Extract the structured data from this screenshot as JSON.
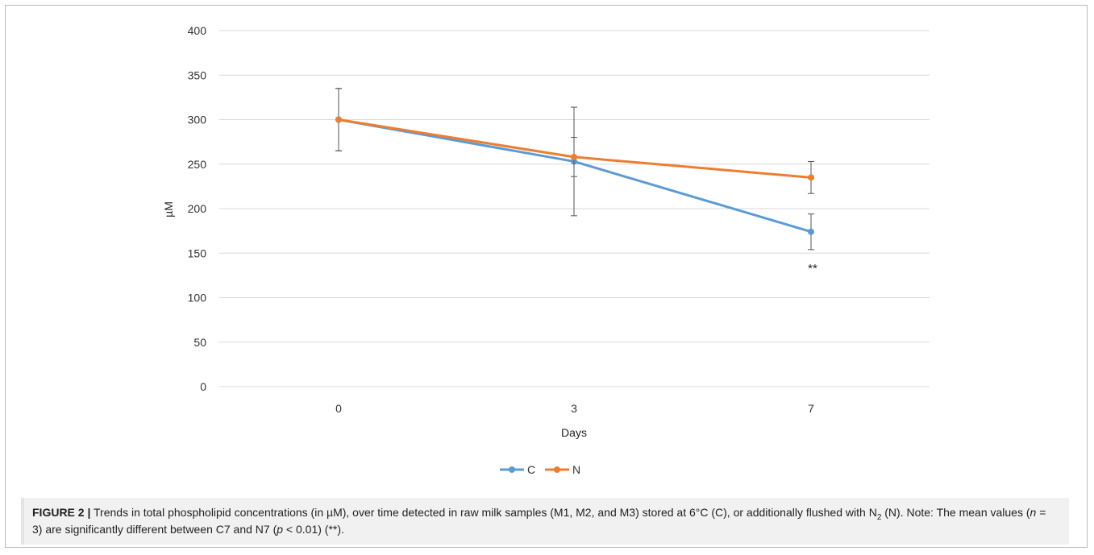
{
  "chart_data": {
    "type": "line",
    "categories": [
      "0",
      "3",
      "7"
    ],
    "series": [
      {
        "name": "C",
        "color": "#5b9bd5",
        "values": [
          300,
          253,
          174
        ],
        "errors": [
          35,
          61,
          20
        ]
      },
      {
        "name": "N",
        "color": "#ed7d31",
        "values": [
          300,
          258,
          235
        ],
        "errors": [
          35,
          22,
          18
        ]
      }
    ],
    "ylim": [
      0,
      400
    ],
    "yticks": [
      0,
      50,
      100,
      150,
      200,
      250,
      300,
      350,
      400
    ],
    "xlabel": "Days",
    "ylabel": "µM",
    "grid": true,
    "legend_position": "bottom",
    "annotations": [
      {
        "x": "7",
        "y": 135,
        "text": "**"
      }
    ]
  },
  "caption": {
    "label": "FIGURE 2 |",
    "line1": "Trends in total phospholipid concentrations (in µM), over time detected in raw milk samples (M1, M2, and M3) stored at 6°C (C), or additionally flushed",
    "with_prefix": "with N",
    "sub2": "2",
    "after_n2": " (N). Note: The mean values (",
    "n_italic": "n",
    "n_value": " = 3) are significantly different between C7 and N7 (",
    "p_italic": "p",
    "p_value": " < 0.01) (**)."
  }
}
